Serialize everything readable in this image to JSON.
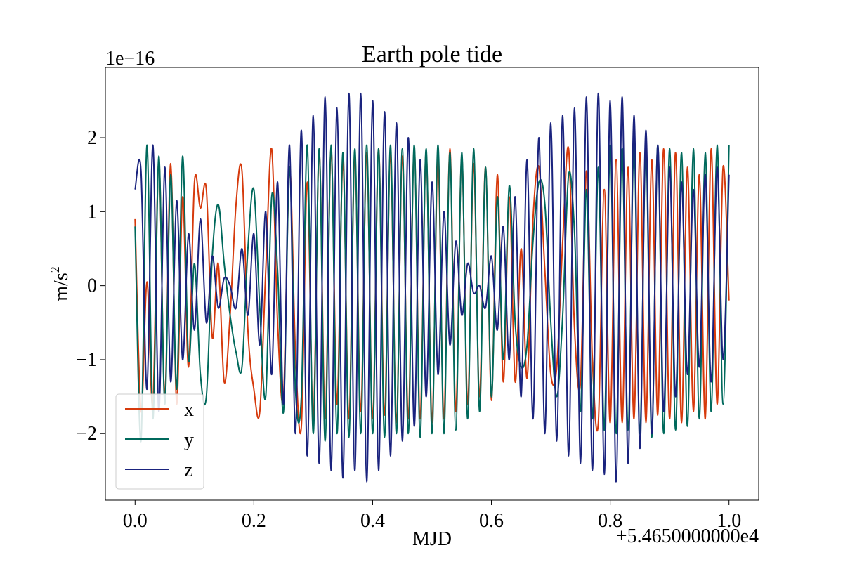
{
  "chart_data": {
    "type": "line",
    "title": "Earth pole tide",
    "xlabel": "MJD",
    "ylabel_base": "m/s",
    "ylabel_exp": "2",
    "x_offset_label": "+5.4650000000e4",
    "y_scale_label": "1e−16",
    "xlim": [
      -0.05,
      1.05
    ],
    "ylim": [
      -2.9,
      2.95
    ],
    "x_ticks": [
      {
        "value": 0.0,
        "label": "0.0"
      },
      {
        "value": 0.2,
        "label": "0.2"
      },
      {
        "value": 0.4,
        "label": "0.4"
      },
      {
        "value": 0.6,
        "label": "0.6"
      },
      {
        "value": 0.8,
        "label": "0.8"
      },
      {
        "value": 1.0,
        "label": "1.0"
      }
    ],
    "y_ticks": [
      {
        "value": -2,
        "label": "−2"
      },
      {
        "value": -1,
        "label": "−1"
      },
      {
        "value": 0,
        "label": "0"
      },
      {
        "value": 1,
        "label": "1"
      },
      {
        "value": 2,
        "label": "2"
      }
    ],
    "grid": false,
    "legend_position": "lower-left",
    "series": [
      {
        "name": "x",
        "color": "#d63a0c",
        "x": [
          0.0,
          0.01,
          0.02,
          0.03,
          0.04,
          0.05,
          0.06,
          0.07,
          0.08,
          0.09,
          0.1,
          0.11,
          0.12,
          0.13,
          0.14,
          0.15,
          0.16,
          0.17,
          0.18,
          0.19,
          0.2,
          0.21,
          0.22,
          0.23,
          0.24,
          0.25,
          0.26,
          0.27,
          0.28,
          0.29,
          0.3,
          0.31,
          0.32,
          0.33,
          0.34,
          0.35,
          0.36,
          0.37,
          0.38,
          0.39,
          0.4,
          0.41,
          0.42,
          0.43,
          0.44,
          0.45,
          0.46,
          0.47,
          0.48,
          0.49,
          0.5,
          0.51,
          0.52,
          0.53,
          0.54,
          0.55,
          0.56,
          0.57,
          0.58,
          0.59,
          0.6,
          0.61,
          0.62,
          0.63,
          0.64,
          0.65,
          0.66,
          0.67,
          0.68,
          0.69,
          0.7,
          0.71,
          0.72,
          0.73,
          0.74,
          0.75,
          0.76,
          0.77,
          0.78,
          0.79,
          0.8,
          0.81,
          0.82,
          0.83,
          0.84,
          0.85,
          0.86,
          0.87,
          0.88,
          0.89,
          0.9,
          0.91,
          0.92,
          0.93,
          0.94,
          0.95,
          0.96,
          0.97,
          0.98,
          0.99,
          1.0
        ],
        "values": [
          0.9,
          -1.7,
          0.05,
          -1.6,
          1.7,
          -1.5,
          1.65,
          -1.6,
          1.2,
          -1.1,
          1.4,
          1.05,
          1.3,
          -0.7,
          0.3,
          -1.3,
          -0.4,
          1.1,
          1.55,
          -0.6,
          -1.4,
          -1.7,
          0.2,
          1.85,
          -0.5,
          -1.5,
          1.6,
          -0.9,
          -1.9,
          1.4,
          -1.85,
          1.8,
          -1.8,
          1.85,
          -1.6,
          1.7,
          -1.8,
          1.75,
          -1.7,
          1.8,
          -1.8,
          1.85,
          -1.75,
          1.8,
          -1.85,
          1.75,
          -1.8,
          1.85,
          -1.8,
          1.8,
          -1.85,
          1.7,
          -1.8,
          1.85,
          -1.7,
          1.75,
          -1.6,
          1.65,
          -1.5,
          1.6,
          -1.55,
          1.5,
          -1.3,
          1.2,
          -1.3,
          0.5,
          -1.25,
          0.9,
          1.6,
          0.2,
          -1.2,
          -1.1,
          0.6,
          1.85,
          -0.6,
          -1.3,
          1.55,
          -1.0,
          -1.85,
          1.3,
          -1.85,
          1.7,
          -1.85,
          1.6,
          -1.8,
          1.8,
          -1.85,
          1.7,
          -1.75,
          1.85,
          -1.8,
          1.8,
          -1.85,
          1.6,
          -1.7,
          1.5,
          -1.8,
          1.85,
          -1.6,
          1.6,
          -0.2
        ]
      },
      {
        "name": "y",
        "color": "#00695c",
        "x": [
          0.0,
          0.01,
          0.02,
          0.03,
          0.04,
          0.05,
          0.06,
          0.07,
          0.08,
          0.09,
          0.1,
          0.11,
          0.12,
          0.13,
          0.14,
          0.15,
          0.16,
          0.17,
          0.18,
          0.19,
          0.2,
          0.21,
          0.22,
          0.23,
          0.24,
          0.25,
          0.26,
          0.27,
          0.28,
          0.29,
          0.3,
          0.31,
          0.32,
          0.33,
          0.34,
          0.35,
          0.36,
          0.37,
          0.38,
          0.39,
          0.4,
          0.41,
          0.42,
          0.43,
          0.44,
          0.45,
          0.46,
          0.47,
          0.48,
          0.49,
          0.5,
          0.51,
          0.52,
          0.53,
          0.54,
          0.55,
          0.56,
          0.57,
          0.58,
          0.59,
          0.6,
          0.61,
          0.62,
          0.63,
          0.64,
          0.65,
          0.66,
          0.67,
          0.68,
          0.69,
          0.7,
          0.71,
          0.72,
          0.73,
          0.74,
          0.75,
          0.76,
          0.77,
          0.78,
          0.79,
          0.8,
          0.81,
          0.82,
          0.83,
          0.84,
          0.85,
          0.86,
          0.87,
          0.88,
          0.89,
          0.9,
          0.91,
          0.92,
          0.93,
          0.94,
          0.95,
          0.96,
          0.97,
          0.98,
          0.99,
          1.0
        ],
        "values": [
          0.8,
          -2.1,
          1.9,
          -1.8,
          1.75,
          -1.6,
          1.5,
          -1.4,
          1.75,
          -1.0,
          0.3,
          -1.2,
          -1.5,
          0.4,
          1.1,
          0.3,
          -0.4,
          -0.9,
          -1.1,
          0.5,
          1.3,
          -0.3,
          -1.5,
          1.2,
          0.2,
          -1.7,
          1.6,
          -1.4,
          -1.5,
          1.9,
          -2.0,
          1.85,
          -2.1,
          1.9,
          -2.0,
          1.8,
          -2.05,
          1.85,
          -2.0,
          1.9,
          -2.0,
          1.85,
          -2.05,
          1.9,
          -2.0,
          1.85,
          -2.0,
          1.9,
          -2.05,
          1.85,
          -2.0,
          1.9,
          -2.0,
          1.8,
          -1.95,
          1.8,
          -1.8,
          1.85,
          -1.7,
          1.6,
          -1.5,
          1.2,
          -1.0,
          1.35,
          -0.5,
          -1.1,
          -0.8,
          0.6,
          1.4,
          1.1,
          -0.5,
          -1.5,
          -0.4,
          1.5,
          0.7,
          -1.7,
          1.3,
          -1.8,
          1.6,
          -1.95,
          1.9,
          -2.0,
          1.85,
          -1.95,
          1.9,
          -2.0,
          1.85,
          -2.05,
          1.9,
          -2.0,
          1.85,
          -1.95,
          1.8,
          -1.9,
          1.85,
          -1.8,
          1.8,
          -1.7,
          1.9,
          -1.6,
          1.9
        ]
      },
      {
        "name": "z",
        "color": "#1a237e",
        "x": [
          0.0,
          0.01,
          0.02,
          0.03,
          0.04,
          0.05,
          0.06,
          0.07,
          0.08,
          0.09,
          0.1,
          0.11,
          0.12,
          0.13,
          0.14,
          0.15,
          0.16,
          0.17,
          0.18,
          0.19,
          0.2,
          0.21,
          0.22,
          0.23,
          0.24,
          0.25,
          0.26,
          0.27,
          0.28,
          0.29,
          0.3,
          0.31,
          0.32,
          0.33,
          0.34,
          0.35,
          0.36,
          0.37,
          0.38,
          0.39,
          0.4,
          0.41,
          0.42,
          0.43,
          0.44,
          0.45,
          0.46,
          0.47,
          0.48,
          0.49,
          0.5,
          0.51,
          0.52,
          0.53,
          0.54,
          0.55,
          0.56,
          0.57,
          0.58,
          0.59,
          0.6,
          0.61,
          0.62,
          0.63,
          0.64,
          0.65,
          0.66,
          0.67,
          0.68,
          0.69,
          0.7,
          0.71,
          0.72,
          0.73,
          0.74,
          0.75,
          0.76,
          0.77,
          0.78,
          0.79,
          0.8,
          0.81,
          0.82,
          0.83,
          0.84,
          0.85,
          0.86,
          0.87,
          0.88,
          0.89,
          0.9,
          0.91,
          0.92,
          0.93,
          0.94,
          0.95,
          0.96,
          0.97,
          0.98,
          0.99,
          1.0
        ],
        "values": [
          1.3,
          1.55,
          -1.4,
          1.9,
          -1.7,
          1.6,
          -1.3,
          1.15,
          -1.0,
          0.7,
          -0.6,
          0.9,
          -0.5,
          0.4,
          -0.3,
          0.1,
          0.0,
          -0.3,
          0.5,
          -0.4,
          0.7,
          -0.8,
          1.0,
          -1.2,
          1.4,
          -1.6,
          1.9,
          -2.0,
          2.1,
          -2.3,
          2.3,
          -2.4,
          2.55,
          -2.5,
          2.4,
          -2.6,
          2.6,
          -2.5,
          2.6,
          -2.65,
          2.5,
          -2.5,
          2.35,
          -2.3,
          2.2,
          -2.1,
          2.0,
          -1.9,
          1.7,
          -1.5,
          1.4,
          -1.2,
          1.0,
          -0.8,
          0.6,
          -0.4,
          0.3,
          -0.1,
          0.0,
          -0.3,
          0.4,
          -0.6,
          0.8,
          -1.0,
          1.2,
          -1.5,
          1.7,
          -1.8,
          2.0,
          -2.0,
          2.2,
          -2.1,
          2.3,
          -2.3,
          2.4,
          -2.4,
          2.55,
          -2.5,
          2.6,
          -2.55,
          2.5,
          -2.65,
          2.55,
          -2.4,
          2.3,
          -2.2,
          2.1,
          -2.0,
          1.9,
          -1.7,
          1.6,
          -1.5,
          1.4,
          -1.2,
          1.3,
          -1.1,
          1.5,
          -1.3,
          1.6,
          -1.0,
          1.5
        ]
      }
    ]
  }
}
